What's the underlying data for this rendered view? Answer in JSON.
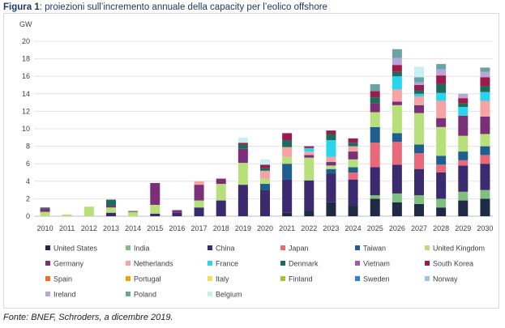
{
  "caption": {
    "prefix": "Figura 1",
    "text": ": proiezioni sull’incremento annuale della capacity per l’eolico offshore"
  },
  "source": "Fonte: BNEF, Schroders, a dicembre 2019.",
  "chart_data": {
    "type": "bar",
    "stacked": true,
    "unit_label": "GW",
    "ylim": [
      0,
      20
    ],
    "yticks": [
      0,
      2,
      4,
      6,
      8,
      10,
      12,
      14,
      16,
      18,
      20
    ],
    "grid": true,
    "legend_position": "bottom",
    "categories": [
      "2010",
      "2011",
      "2012",
      "2013",
      "2014",
      "2015",
      "2016",
      "2017",
      "2018",
      "2019",
      "2020",
      "2021",
      "2022",
      "2023",
      "2024",
      "2025",
      "2026",
      "2027",
      "2028",
      "2029",
      "2030"
    ],
    "series": [
      {
        "name": "United States",
        "color": "#1f2a44",
        "values": [
          0,
          0,
          0,
          0,
          0,
          0,
          0,
          0,
          0,
          0,
          0,
          0.4,
          0.6,
          1.6,
          1.2,
          2.0,
          1.6,
          1.4,
          1.0,
          1.8,
          2.0
        ]
      },
      {
        "name": "India",
        "color": "#7fbf7f",
        "values": [
          0,
          0,
          0,
          0,
          0,
          0,
          0,
          0,
          0,
          0,
          0,
          0,
          0,
          0,
          0,
          0.4,
          1.0,
          1.0,
          1.0,
          1.0,
          1.0
        ]
      },
      {
        "name": "China",
        "color": "#3b2a6e",
        "values": [
          0,
          0,
          0,
          0.4,
          0,
          0.3,
          0.4,
          1.0,
          1.8,
          3.6,
          3.0,
          3.8,
          3.5,
          3.3,
          3.0,
          3.2,
          3.3,
          3.0,
          3.0,
          3.0,
          3.0
        ]
      },
      {
        "name": "Japan",
        "color": "#e8697a",
        "values": [
          0,
          0,
          0,
          0,
          0,
          0,
          0,
          0,
          0,
          0,
          0,
          0,
          0,
          0,
          0.8,
          2.8,
          2.6,
          1.8,
          0.9,
          0.6,
          1.0
        ]
      },
      {
        "name": "Taiwan",
        "color": "#1f5f8f",
        "values": [
          0,
          0,
          0,
          0,
          0,
          0,
          0,
          0,
          0,
          0,
          0.7,
          1.8,
          0,
          0.5,
          0.6,
          1.8,
          1.0,
          1.0,
          1.0,
          1.0,
          1.0
        ]
      },
      {
        "name": "United Kingdom",
        "color": "#b8e07a",
        "values": [
          0.5,
          0.2,
          1.1,
          0.6,
          0.5,
          1.0,
          0,
          0.8,
          1.9,
          2.5,
          0.6,
          0.8,
          2.6,
          0.4,
          0.9,
          1.7,
          3.2,
          3.6,
          3.3,
          1.8,
          1.4
        ]
      },
      {
        "name": "Germany",
        "color": "#7a2f78",
        "values": [
          0.4,
          0,
          0,
          0.2,
          0.1,
          2.5,
          0.3,
          1.8,
          0.6,
          1.6,
          0,
          0,
          0.3,
          0.4,
          0.9,
          1.0,
          0.4,
          0.9,
          1.0,
          2.3,
          2.0
        ]
      },
      {
        "name": "Netherlands",
        "color": "#f4a4a4",
        "values": [
          0,
          0,
          0,
          0,
          0,
          0,
          0,
          0.4,
          0,
          0,
          0.9,
          1.1,
          0.4,
          0.6,
          0.6,
          0,
          1.4,
          1.0,
          2.0,
          0,
          1.8
        ]
      },
      {
        "name": "France",
        "color": "#29d4ec",
        "values": [
          0,
          0,
          0,
          0,
          0,
          0,
          0,
          0,
          0,
          0,
          0,
          0,
          0.4,
          1.9,
          0,
          0,
          1.5,
          0.3,
          0.9,
          1.0,
          1.0
        ]
      },
      {
        "name": "Denmark",
        "color": "#1e6b5c",
        "values": [
          0.1,
          0,
          0,
          0.7,
          0,
          0,
          0,
          0,
          0,
          0.5,
          0.3,
          0.8,
          0,
          0.7,
          0.4,
          0.7,
          0.5,
          0.4,
          1.0,
          0.4,
          0.7
        ]
      },
      {
        "name": "Vietnam",
        "color": "#a25aa3",
        "values": [
          0,
          0,
          0,
          0,
          0,
          0,
          0,
          0,
          0,
          0,
          0,
          0,
          0,
          0,
          0,
          0,
          0,
          0,
          0,
          0,
          0
        ]
      },
      {
        "name": "South Korea",
        "color": "#9b1b4e",
        "values": [
          0,
          0,
          0,
          0,
          0,
          0,
          0,
          0,
          0,
          0.2,
          0.4,
          0.8,
          0.2,
          0.4,
          0.5,
          0.7,
          0.8,
          0.6,
          1.0,
          0.6,
          1.0
        ]
      },
      {
        "name": "Spain",
        "color": "#f26a21",
        "values": [
          0,
          0,
          0,
          0,
          0,
          0,
          0,
          0,
          0,
          0,
          0,
          0,
          0,
          0,
          0,
          0,
          0,
          0,
          0,
          0,
          0
        ]
      },
      {
        "name": "Portugal",
        "color": "#f5a100",
        "values": [
          0,
          0,
          0,
          0,
          0,
          0,
          0,
          0,
          0,
          0,
          0,
          0,
          0,
          0,
          0,
          0,
          0,
          0,
          0,
          0,
          0
        ]
      },
      {
        "name": "Italy",
        "color": "#f5dc5a",
        "values": [
          0,
          0,
          0,
          0,
          0,
          0,
          0,
          0,
          0,
          0,
          0,
          0,
          0,
          0,
          0,
          0,
          0,
          0,
          0,
          0,
          0
        ]
      },
      {
        "name": "Finland",
        "color": "#9fc93b",
        "values": [
          0,
          0,
          0,
          0,
          0,
          0,
          0,
          0,
          0,
          0,
          0,
          0,
          0,
          0,
          0,
          0,
          0,
          0,
          0,
          0,
          0
        ]
      },
      {
        "name": "Sweden",
        "color": "#2f7fd4",
        "values": [
          0,
          0,
          0,
          0,
          0,
          0,
          0,
          0,
          0,
          0,
          0,
          0,
          0,
          0,
          0,
          0,
          0,
          0,
          0,
          0,
          0
        ]
      },
      {
        "name": "Norway",
        "color": "#9ec3e8",
        "values": [
          0,
          0,
          0,
          0,
          0,
          0,
          0,
          0,
          0,
          0,
          0,
          0,
          0,
          0,
          0,
          0,
          0,
          0,
          0,
          0,
          0
        ]
      },
      {
        "name": "Ireland",
        "color": "#b7a6d6",
        "values": [
          0,
          0,
          0,
          0,
          0,
          0,
          0,
          0,
          0,
          0,
          0,
          0,
          0,
          0,
          0,
          0,
          0.8,
          0.3,
          0.7,
          0.5,
          0.6
        ]
      },
      {
        "name": "Poland",
        "color": "#6aa3a3",
        "values": [
          0,
          0,
          0,
          0,
          0,
          0,
          0,
          0,
          0,
          0,
          0,
          0,
          0,
          0,
          0,
          0.8,
          1.0,
          0.6,
          0.6,
          0,
          0.5
        ]
      },
      {
        "name": "Belgium",
        "color": "#c8f0f4",
        "values": [
          0,
          0,
          0,
          0,
          0,
          0,
          0,
          0,
          0,
          0.6,
          0.6,
          0,
          0,
          0,
          0,
          0,
          0,
          1.2,
          0,
          0,
          0
        ]
      }
    ]
  }
}
